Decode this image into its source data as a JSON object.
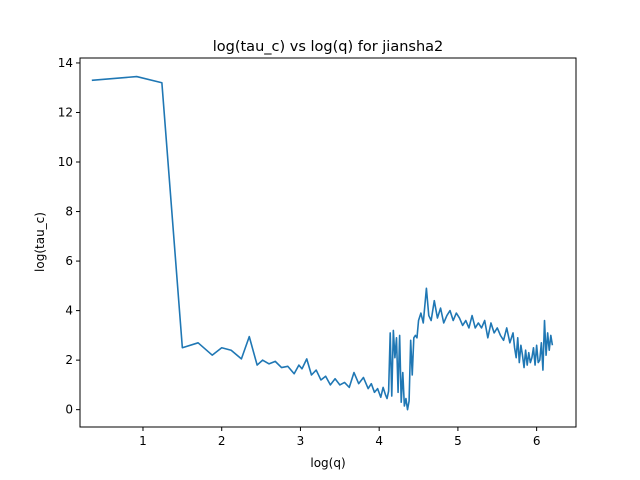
{
  "chart_data": {
    "type": "line",
    "title": "log(tau_c) vs log(q) for jiansha2",
    "xlabel": "log(q)",
    "ylabel": "log(tau_c)",
    "xlim": [
      0.2,
      6.5
    ],
    "ylim": [
      -0.7,
      14.2
    ],
    "x_ticks": [
      1,
      2,
      3,
      4,
      5,
      6
    ],
    "y_ticks": [
      0,
      2,
      4,
      6,
      8,
      10,
      12,
      14
    ],
    "grid": false,
    "legend": "none",
    "line_color": "#1f77b4",
    "series": [
      {
        "x": [
          0.35,
          0.92,
          1.24,
          1.5,
          1.7,
          1.88,
          2.0,
          2.12,
          2.25,
          2.35,
          2.45,
          2.52,
          2.6,
          2.68,
          2.76,
          2.84,
          2.92,
          2.98,
          3.02,
          3.08,
          3.14,
          3.2,
          3.26,
          3.32,
          3.38,
          3.44,
          3.5,
          3.56,
          3.62,
          3.68,
          3.74,
          3.8,
          3.86,
          3.9,
          3.94,
          3.98,
          4.02,
          4.05,
          4.08,
          4.1,
          4.12,
          4.14,
          4.16,
          4.18,
          4.2,
          4.22,
          4.24,
          4.26,
          4.28,
          4.3,
          4.32,
          4.34,
          4.36,
          4.38,
          4.4,
          4.42,
          4.44,
          4.46,
          4.48,
          4.5,
          4.53,
          4.56,
          4.6,
          4.63,
          4.66,
          4.7,
          4.74,
          4.78,
          4.82,
          4.86,
          4.9,
          4.94,
          4.98,
          5.02,
          5.06,
          5.1,
          5.14,
          5.18,
          5.22,
          5.26,
          5.3,
          5.34,
          5.38,
          5.42,
          5.46,
          5.5,
          5.54,
          5.58,
          5.62,
          5.66,
          5.7,
          5.72,
          5.74,
          5.76,
          5.78,
          5.8,
          5.82,
          5.84,
          5.86,
          5.88,
          5.9,
          5.92,
          5.94,
          5.96,
          5.98,
          6.0,
          6.02,
          6.04,
          6.06,
          6.08,
          6.1,
          6.12,
          6.14,
          6.16,
          6.18,
          6.2
        ],
        "y": [
          13.3,
          13.45,
          13.2,
          2.5,
          2.7,
          2.2,
          2.5,
          2.4,
          2.05,
          2.95,
          1.8,
          2.0,
          1.85,
          1.95,
          1.7,
          1.75,
          1.45,
          1.8,
          1.65,
          2.05,
          1.4,
          1.6,
          1.2,
          1.35,
          1.0,
          1.25,
          1.0,
          1.1,
          0.9,
          1.5,
          1.05,
          1.3,
          0.85,
          1.05,
          0.7,
          0.85,
          0.5,
          0.9,
          0.6,
          0.45,
          0.75,
          3.1,
          0.55,
          3.2,
          2.1,
          2.9,
          0.7,
          3.0,
          0.3,
          1.5,
          0.15,
          0.45,
          0.0,
          0.35,
          2.8,
          1.4,
          2.9,
          3.0,
          2.9,
          3.6,
          3.9,
          3.5,
          4.9,
          3.8,
          3.6,
          4.4,
          3.7,
          4.1,
          3.5,
          3.8,
          4.0,
          3.6,
          3.9,
          3.7,
          3.4,
          3.6,
          3.3,
          3.8,
          3.3,
          3.5,
          3.3,
          3.6,
          2.9,
          3.5,
          3.1,
          3.3,
          3.0,
          2.8,
          3.3,
          2.7,
          3.1,
          2.5,
          2.1,
          2.9,
          1.9,
          2.6,
          2.2,
          1.7,
          2.4,
          1.8,
          2.3,
          1.9,
          2.1,
          2.5,
          1.8,
          2.6,
          1.9,
          2.0,
          2.7,
          1.6,
          3.6,
          2.2,
          3.1,
          2.4,
          3.0,
          2.6
        ]
      }
    ]
  }
}
